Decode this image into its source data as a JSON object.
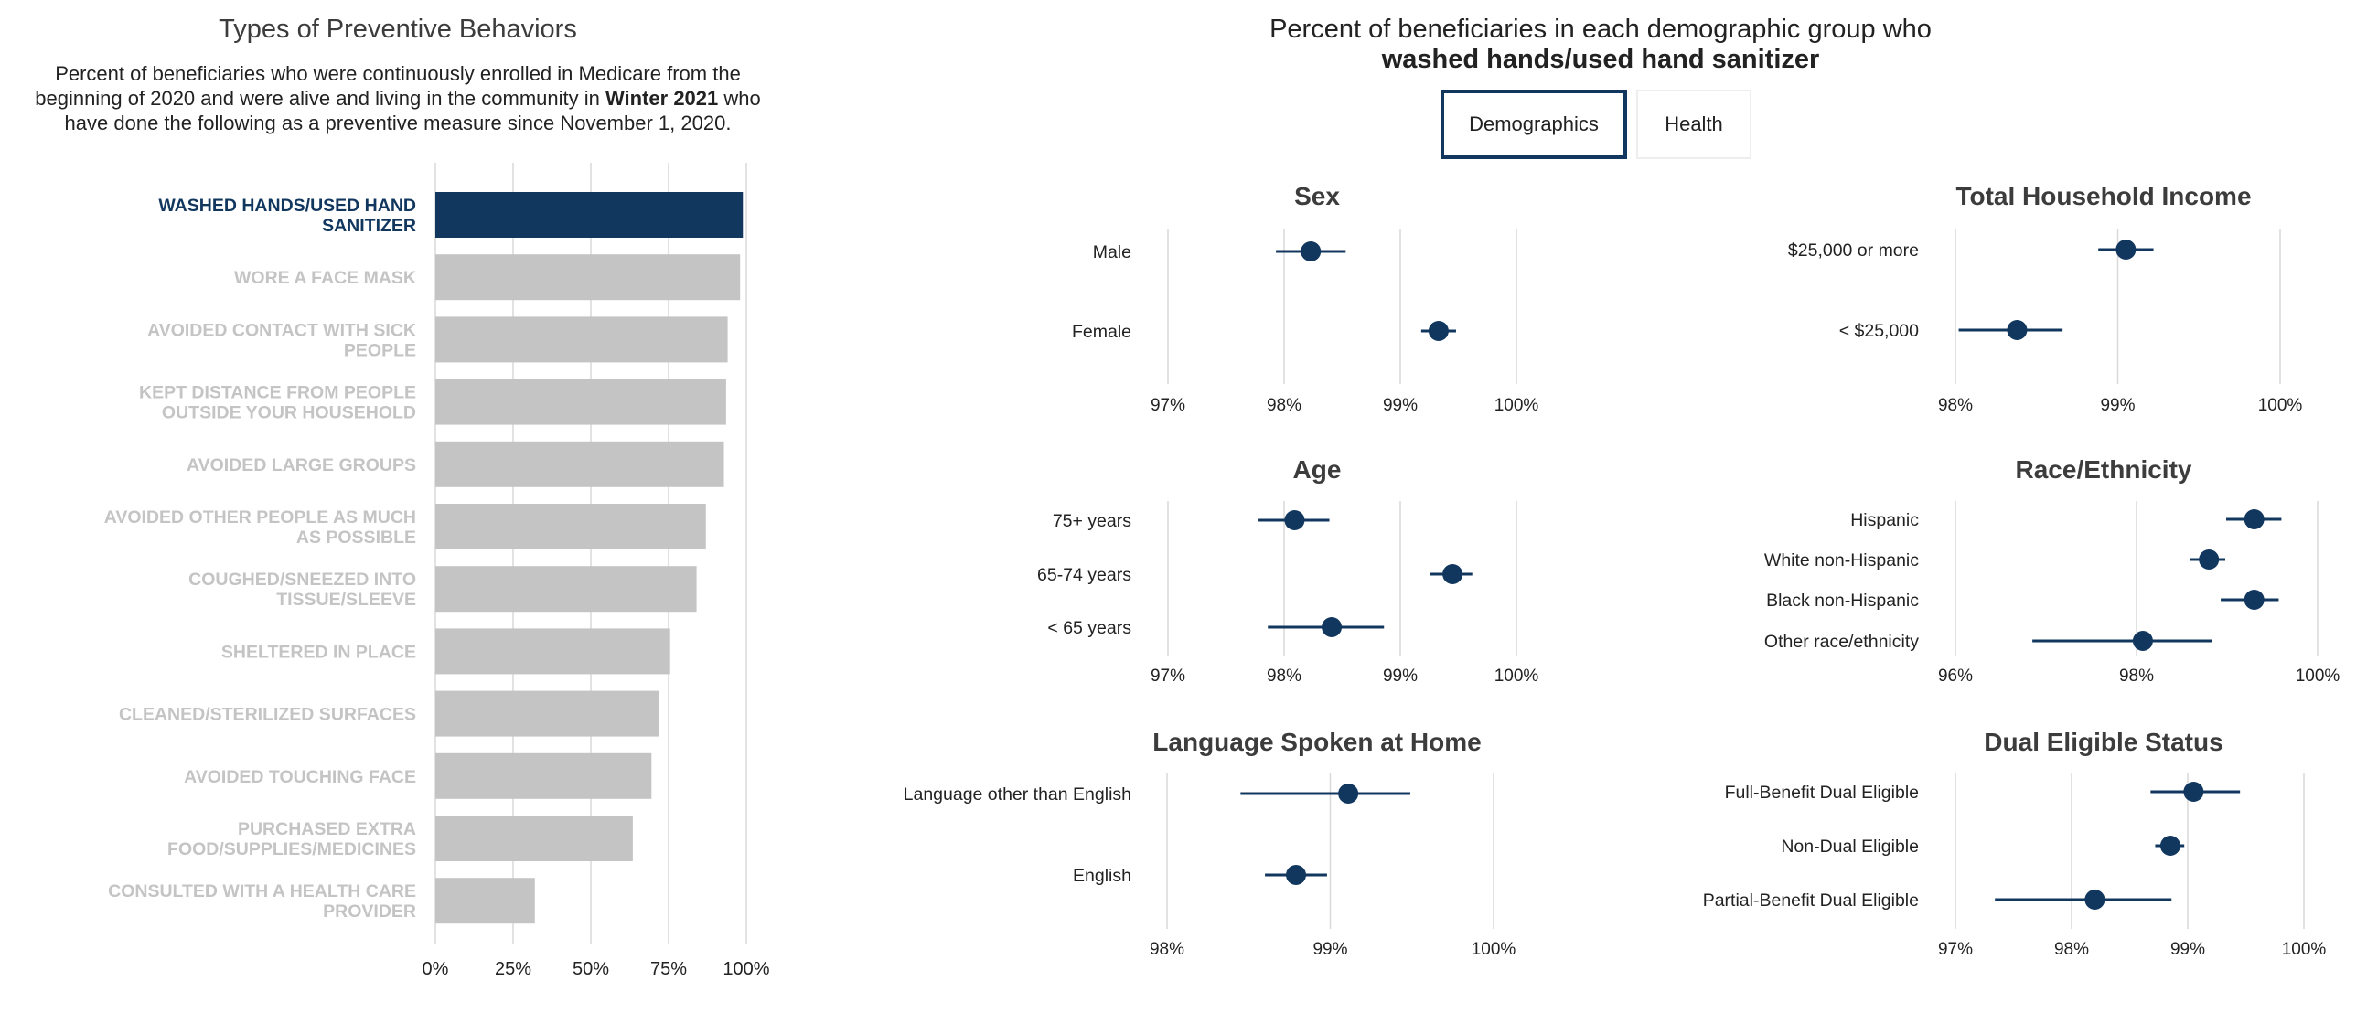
{
  "left_panel": {
    "title": "Types of Preventive Behaviors",
    "subtitle": {
      "part1": "Percent of beneficiaries who were continuously enrolled in Medicare from the beginning of 2020 and were alive and living in the community in ",
      "highlight": "Winter 2021",
      "part2": " who have done the following as a preventive measure since November 1, 2020."
    }
  },
  "right_panel": {
    "title_line1": "Percent of beneficiaries in each demographic group who",
    "title_line2": "washed hands/used hand sanitizer",
    "tabs": [
      {
        "label": "Demographics",
        "active": true
      },
      {
        "label": "Health",
        "active": false
      }
    ]
  },
  "colors": {
    "highlight": "#12375f",
    "bar_gray": "#c4c4c4",
    "label_gray": "#c4c4c4",
    "grid": "#d9d9d9",
    "text": "#222222"
  },
  "chart_data": [
    {
      "type": "bar",
      "orientation": "horizontal",
      "categories": [
        "WASHED HANDS/USED HAND SANITIZER",
        "WORE A FACE MASK",
        "AVOIDED CONTACT WITH SICK PEOPLE",
        "KEPT DISTANCE FROM PEOPLE OUTSIDE YOUR HOUSEHOLD",
        "AVOIDED LARGE GROUPS",
        "AVOIDED OTHER PEOPLE AS MUCH AS POSSIBLE",
        "COUGHED/SNEEZED INTO TISSUE/SLEEVE",
        "SHELTERED IN PLACE",
        "CLEANED/STERILIZED SURFACES",
        "AVOIDED TOUCHING FACE",
        "PURCHASED EXTRA FOOD/SUPPLIES/MEDICINES",
        "CONSULTED WITH A HEALTH CARE PROVIDER"
      ],
      "values": [
        98.9,
        98.0,
        94.0,
        93.5,
        92.8,
        87.0,
        84.0,
        75.5,
        72.0,
        69.5,
        63.5,
        32.0
      ],
      "highlighted_index": 0,
      "xlim": [
        0,
        100
      ],
      "xticks": [
        0,
        25,
        50,
        75,
        100
      ],
      "xtick_labels": [
        "0%",
        "25%",
        "50%",
        "75%",
        "100%"
      ]
    },
    {
      "type": "dot-errorbar",
      "title": "Sex",
      "categories": [
        "Male",
        "Female"
      ],
      "values": [
        98.23,
        99.33
      ],
      "lower": [
        97.93,
        99.18
      ],
      "upper": [
        98.53,
        99.48
      ],
      "xlim": [
        97,
        100
      ],
      "xticks": [
        97,
        98,
        99,
        100
      ],
      "xtick_labels": [
        "97%",
        "98%",
        "99%",
        "100%"
      ]
    },
    {
      "type": "dot-errorbar",
      "title": "Total Household Income",
      "categories": [
        "$25,000 or more",
        "< $25,000"
      ],
      "values": [
        99.05,
        98.38
      ],
      "lower": [
        98.88,
        98.02
      ],
      "upper": [
        99.22,
        98.66
      ],
      "xlim": [
        98,
        100
      ],
      "xticks": [
        98,
        99,
        100
      ],
      "xtick_labels": [
        "98%",
        "99%",
        "100%"
      ]
    },
    {
      "type": "dot-errorbar",
      "title": "Age",
      "categories": [
        "75+ years",
        "65-74 years",
        "< 65 years"
      ],
      "values": [
        98.09,
        99.45,
        98.41
      ],
      "lower": [
        97.78,
        99.26,
        97.86
      ],
      "upper": [
        98.39,
        99.62,
        98.86
      ],
      "xlim": [
        97,
        100
      ],
      "xticks": [
        97,
        98,
        99,
        100
      ],
      "xtick_labels": [
        "97%",
        "98%",
        "99%",
        "100%"
      ]
    },
    {
      "type": "dot-errorbar",
      "title": "Race/Ethnicity",
      "categories": [
        "Hispanic",
        "White non-Hispanic",
        "Black non-Hispanic",
        "Other race/ethnicity"
      ],
      "values": [
        99.3,
        98.8,
        99.3,
        98.07
      ],
      "lower": [
        98.99,
        98.59,
        98.93,
        96.85
      ],
      "upper": [
        99.6,
        98.98,
        99.57,
        98.83
      ],
      "xlim": [
        96,
        100
      ],
      "xticks": [
        96,
        98,
        100
      ],
      "xtick_labels": [
        "96%",
        "98%",
        "100%"
      ]
    },
    {
      "type": "dot-errorbar",
      "title": "Language Spoken at Home",
      "categories": [
        "Language other than English",
        "English"
      ],
      "values": [
        99.11,
        98.79
      ],
      "lower": [
        98.45,
        98.6
      ],
      "upper": [
        99.49,
        98.98
      ],
      "xlim": [
        98,
        100
      ],
      "xticks": [
        98,
        99,
        100
      ],
      "xtick_labels": [
        "98%",
        "99%",
        "100%"
      ]
    },
    {
      "type": "dot-errorbar",
      "title": "Dual Eligible Status",
      "categories": [
        "Full-Benefit Dual Eligible",
        "Non-Dual Eligible",
        "Partial-Benefit Dual Eligible"
      ],
      "values": [
        99.05,
        98.85,
        98.2
      ],
      "lower": [
        98.68,
        98.72,
        97.34
      ],
      "upper": [
        99.45,
        98.97,
        98.86
      ],
      "xlim": [
        97,
        100
      ],
      "xticks": [
        97,
        98,
        99,
        100
      ],
      "xtick_labels": [
        "97%",
        "98%",
        "99%",
        "100%"
      ]
    }
  ]
}
